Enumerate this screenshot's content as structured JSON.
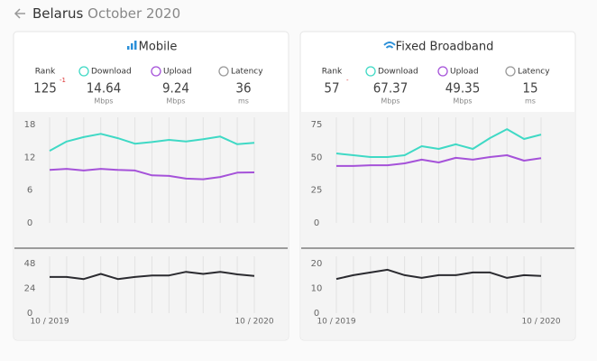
{
  "header": {
    "country": "Belarus",
    "period": "October 2020"
  },
  "panels": [
    {
      "title": "Mobile",
      "stats": [
        {
          "label": "Rank",
          "value": 125,
          "change": "-1"
        },
        {
          "label": "Download",
          "value": 14.64,
          "unit": "Mbps"
        },
        {
          "label": "Upload",
          "value": 9.24,
          "unit": "Mbps"
        },
        {
          "label": "Latency",
          "value": 36,
          "unit": "ms"
        }
      ]
    },
    {
      "title": "Fixed Broadband",
      "stats": [
        {
          "label": "Rank",
          "value": 57,
          "change": "-"
        },
        {
          "label": "Download",
          "value": 67.37,
          "unit": "Mbps"
        },
        {
          "label": "Upload",
          "value": 49.35,
          "unit": "Mbps"
        },
        {
          "label": "Latency",
          "value": 15,
          "unit": "ms"
        }
      ]
    }
  ],
  "chart_data": [
    {
      "type": "line",
      "ylim": [
        0,
        18
      ],
      "yticks": [
        0,
        6,
        12,
        18
      ],
      "xgrid": true,
      "series": [
        {
          "color": "#3fd9c5",
          "values": [
            13.2,
            14.9,
            15.7,
            16.3,
            15.5,
            14.5,
            14.8,
            15.2,
            14.9,
            15.3,
            15.8,
            14.4,
            14.64
          ]
        },
        {
          "color": "#a552d9",
          "values": [
            9.7,
            9.9,
            9.6,
            9.9,
            9.7,
            9.6,
            8.7,
            8.6,
            8.1,
            8.0,
            8.4,
            9.2,
            9.24
          ]
        }
      ]
    },
    {
      "type": "line",
      "ylim": [
        0,
        48
      ],
      "yticks": [
        0,
        24,
        48
      ],
      "xgrid": true,
      "categories": [
        "10 / 2019",
        null,
        null,
        null,
        null,
        null,
        null,
        null,
        null,
        null,
        null,
        null,
        "10 / 2020"
      ],
      "series": [
        {
          "color": "#2b2b30",
          "values": [
            35,
            35,
            33,
            38,
            33,
            35,
            36.5,
            36.5,
            40,
            38,
            40,
            37.5,
            36
          ]
        }
      ]
    },
    {
      "type": "line",
      "ylim": [
        0,
        75
      ],
      "yticks": [
        0,
        25,
        50,
        75
      ],
      "xgrid": true,
      "series": [
        {
          "color": "#3fd9c5",
          "values": [
            53,
            51.6,
            50.2,
            50.2,
            51.6,
            58.5,
            56.4,
            59.9,
            56.4,
            64.7,
            71.5,
            64,
            67.37
          ]
        },
        {
          "color": "#a552d9",
          "values": [
            43.4,
            43.4,
            44,
            44,
            45.4,
            48.2,
            46.1,
            49.6,
            48.2,
            50.2,
            51.6,
            47.5,
            49.35
          ]
        }
      ]
    },
    {
      "type": "line",
      "ylim": [
        0,
        20
      ],
      "yticks": [
        0,
        10,
        20
      ],
      "xgrid": true,
      "categories": [
        "10 / 2019",
        null,
        null,
        null,
        null,
        null,
        null,
        null,
        null,
        null,
        null,
        null,
        "10 / 2020"
      ],
      "series": [
        {
          "color": "#2b2b30",
          "values": [
            13.8,
            15.3,
            16.4,
            17.5,
            15.3,
            14.2,
            15.3,
            15.3,
            16.4,
            16.4,
            14.2,
            15.3,
            15
          ]
        }
      ]
    }
  ]
}
